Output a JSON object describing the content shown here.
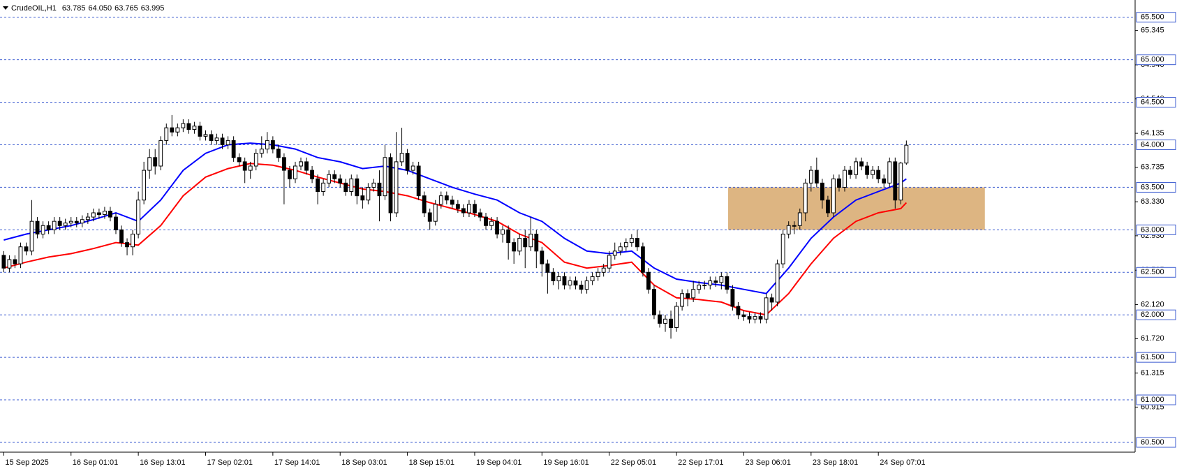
{
  "chart_data": {
    "type": "candlestick",
    "title": "CrudeOIL,H1",
    "quote": [
      "63.785",
      "64.050",
      "63.765",
      "63.995"
    ],
    "xlim": [
      -0.67,
      201.8
    ],
    "ylim": [
      60.385,
      65.703
    ],
    "xticks": [
      {
        "value": 0,
        "label": "15 Sep 2025"
      },
      {
        "value": 12,
        "label": "16 Sep 01:01"
      },
      {
        "value": 24,
        "label": "16 Sep 13:01"
      },
      {
        "value": 36,
        "label": "17 Sep 02:01"
      },
      {
        "value": 48,
        "label": "17 Sep 14:01"
      },
      {
        "value": 60,
        "label": "18 Sep 03:01"
      },
      {
        "value": 72,
        "label": "18 Sep 15:01"
      },
      {
        "value": 84,
        "label": "19 Sep 04:01"
      },
      {
        "value": 96,
        "label": "19 Sep 16:01"
      },
      {
        "value": 108,
        "label": "22 Sep 05:01"
      },
      {
        "value": 120,
        "label": "22 Sep 17:01"
      },
      {
        "value": 132,
        "label": "23 Sep 06:01"
      },
      {
        "value": 144,
        "label": "23 Sep 18:01"
      },
      {
        "value": 156,
        "label": "24 Sep 07:01"
      }
    ],
    "yticks": [
      65.345,
      {
        "value": 64.94,
        "label": "64.940"
      },
      {
        "value": 64.54,
        "label": "64.540"
      },
      64.135,
      63.735,
      {
        "value": 63.33,
        "label": "63.330"
      },
      {
        "value": 62.93,
        "label": "62.930"
      },
      62.525,
      {
        "value": 62.12,
        "label": "62.120"
      },
      {
        "value": 61.72,
        "label": "61.720"
      },
      61.315,
      60.915
    ],
    "levels": [
      {
        "value": 65.5,
        "label": "65.500"
      },
      {
        "value": 65.0,
        "label": "65.000"
      },
      {
        "value": 64.5,
        "label": "64.500"
      },
      {
        "value": 64.0,
        "label": "64.000"
      },
      {
        "value": 63.5,
        "label": "63.500"
      },
      {
        "value": 63.0,
        "label": "63.000"
      },
      {
        "value": 62.5,
        "label": "62.500"
      },
      {
        "value": 62.0,
        "label": "62.000"
      },
      {
        "value": 61.5,
        "label": "61.500"
      },
      {
        "value": 61.0,
        "label": "61.000"
      },
      {
        "value": 60.5,
        "label": "60.500"
      }
    ],
    "level_color": "#3b5bd0",
    "zone": {
      "x": [
        129.2,
        175
      ],
      "y": [
        63.0,
        63.5
      ],
      "color": "#ddb582"
    },
    "up_color": "#ffffff",
    "down_color": "#000000",
    "open": [
      62.7,
      62.55,
      62.65,
      62.6,
      62.8,
      62.75,
      63.1,
      62.95,
      63.05,
      63.0,
      63.1,
      63.05,
      63.08,
      63.1,
      63.08,
      63.12,
      63.15,
      63.2,
      63.18,
      63.22,
      63.15,
      63.0,
      62.85,
      62.8,
      62.95,
      63.35,
      63.7,
      63.85,
      63.75,
      64.05,
      64.2,
      64.15,
      64.2,
      64.25,
      64.18,
      64.22,
      64.1,
      64.12,
      64.05,
      64.08,
      64.0,
      64.05,
      63.85,
      63.8,
      63.7,
      63.75,
      63.9,
      63.95,
      64.05,
      63.95,
      63.85,
      63.7,
      63.6,
      63.75,
      63.8,
      63.7,
      63.6,
      63.45,
      63.55,
      63.65,
      63.6,
      63.55,
      63.45,
      63.6,
      63.4,
      63.35,
      63.5,
      63.55,
      63.4,
      63.85,
      63.2,
      63.8,
      63.9,
      63.7,
      63.75,
      63.4,
      63.2,
      63.1,
      63.3,
      63.4,
      63.35,
      63.3,
      63.25,
      63.2,
      63.3,
      63.2,
      63.15,
      63.05,
      63.1,
      62.95,
      63.0,
      62.85,
      62.75,
      62.9,
      62.8,
      62.95,
      62.75,
      62.6,
      62.5,
      62.4,
      62.45,
      62.35,
      62.4,
      62.35,
      62.3,
      62.4,
      62.45,
      62.5,
      62.55,
      62.7,
      62.75,
      62.8,
      62.85,
      62.9,
      62.8,
      62.5,
      62.3,
      62.0,
      61.9,
      61.95,
      61.85,
      62.1,
      62.25,
      62.2,
      62.3,
      62.35,
      62.35,
      62.4,
      62.38,
      62.45,
      62.3,
      62.1,
      62.0,
      61.98,
      61.95,
      61.98,
      61.95,
      62.2,
      62.15,
      62.6,
      62.95,
      63.05,
      63.05,
      63.2,
      63.55,
      63.7,
      63.55,
      63.35,
      63.2,
      63.6,
      63.5,
      63.7,
      63.65,
      63.8,
      63.75,
      63.65,
      63.7,
      63.6,
      63.55,
      63.8,
      63.35,
      63.785
    ],
    "high": [
      62.75,
      62.7,
      62.7,
      62.85,
      62.85,
      63.35,
      63.15,
      63.1,
      63.1,
      63.15,
      63.15,
      63.13,
      63.15,
      63.15,
      63.17,
      63.2,
      63.25,
      63.25,
      63.27,
      63.27,
      63.2,
      63.05,
      62.9,
      63.0,
      63.45,
      63.8,
      63.95,
      63.95,
      64.1,
      64.25,
      64.35,
      64.25,
      64.3,
      64.3,
      64.27,
      64.27,
      64.17,
      64.17,
      64.13,
      64.13,
      64.1,
      64.1,
      63.9,
      63.85,
      63.8,
      63.95,
      64.1,
      64.15,
      64.1,
      64.0,
      63.9,
      63.75,
      63.8,
      63.85,
      63.85,
      63.75,
      63.65,
      63.6,
      63.7,
      63.7,
      63.65,
      63.6,
      63.65,
      63.65,
      63.5,
      63.55,
      63.6,
      63.7,
      64.0,
      63.9,
      64.15,
      64.2,
      63.95,
      63.8,
      63.8,
      63.45,
      63.25,
      63.35,
      63.45,
      63.45,
      63.4,
      63.35,
      63.3,
      63.35,
      63.35,
      63.25,
      63.2,
      63.15,
      63.15,
      63.05,
      63.05,
      62.9,
      62.95,
      63.0,
      63.15,
      63.0,
      62.8,
      62.65,
      62.55,
      62.5,
      62.5,
      62.45,
      62.45,
      62.4,
      62.45,
      62.5,
      62.55,
      62.6,
      62.75,
      62.85,
      62.85,
      62.9,
      62.95,
      63.0,
      62.85,
      62.55,
      62.35,
      62.05,
      62.0,
      62.05,
      62.15,
      62.3,
      62.3,
      62.4,
      62.4,
      62.4,
      62.45,
      62.45,
      62.5,
      62.5,
      62.35,
      62.15,
      62.05,
      62.03,
      62.03,
      62.03,
      62.25,
      62.25,
      62.65,
      63.0,
      63.1,
      63.1,
      63.25,
      63.6,
      63.75,
      63.85,
      63.6,
      63.4,
      63.65,
      63.65,
      63.75,
      63.75,
      63.85,
      63.85,
      63.8,
      63.75,
      63.75,
      63.65,
      63.85,
      63.85,
      63.8,
      64.05
    ],
    "low": [
      62.5,
      62.5,
      62.55,
      62.55,
      62.7,
      62.7,
      62.9,
      62.9,
      62.95,
      62.95,
      63.0,
      63.0,
      63.03,
      63.03,
      63.03,
      63.07,
      63.1,
      63.13,
      63.13,
      63.1,
      62.95,
      62.8,
      62.7,
      62.7,
      62.9,
      63.3,
      63.6,
      63.65,
      63.7,
      64.0,
      64.1,
      64.1,
      64.15,
      64.13,
      64.13,
      64.05,
      64.05,
      64.0,
      64.0,
      63.95,
      63.95,
      63.8,
      63.75,
      63.55,
      63.6,
      63.7,
      63.85,
      63.9,
      63.9,
      63.8,
      63.3,
      63.5,
      63.55,
      63.7,
      63.65,
      63.55,
      63.3,
      63.4,
      63.5,
      63.55,
      63.5,
      63.4,
      63.4,
      63.3,
      63.25,
      63.3,
      63.45,
      63.1,
      63.35,
      63.1,
      63.15,
      63.75,
      63.65,
      63.65,
      63.35,
      63.15,
      63.0,
      63.05,
      63.25,
      63.3,
      63.25,
      63.2,
      63.15,
      63.15,
      63.15,
      63.1,
      63.0,
      63.0,
      62.9,
      62.85,
      62.65,
      62.6,
      62.7,
      62.55,
      62.75,
      62.55,
      62.45,
      62.25,
      62.35,
      62.3,
      62.3,
      62.3,
      62.3,
      62.25,
      62.25,
      62.35,
      62.4,
      62.45,
      62.5,
      62.65,
      62.7,
      62.75,
      62.8,
      62.75,
      62.45,
      62.25,
      61.95,
      61.85,
      61.8,
      61.72,
      61.8,
      62.05,
      62.1,
      62.15,
      62.25,
      62.3,
      62.3,
      62.33,
      62.3,
      62.25,
      62.05,
      61.95,
      61.93,
      61.9,
      61.9,
      61.9,
      61.9,
      62.05,
      62.1,
      62.55,
      62.9,
      62.95,
      63.0,
      63.1,
      63.45,
      63.5,
      63.25,
      63.15,
      63.15,
      63.45,
      63.45,
      63.6,
      63.6,
      63.7,
      63.6,
      63.6,
      63.55,
      63.5,
      63.5,
      63.25,
      63.3,
      63.765
    ],
    "close": [
      62.55,
      62.65,
      62.6,
      62.8,
      62.75,
      63.1,
      62.95,
      63.05,
      63.0,
      63.1,
      63.05,
      63.08,
      63.1,
      63.08,
      63.12,
      63.15,
      63.2,
      63.18,
      63.22,
      63.15,
      63.0,
      62.85,
      62.8,
      62.95,
      63.35,
      63.7,
      63.85,
      63.75,
      64.05,
      64.2,
      64.15,
      64.2,
      64.25,
      64.18,
      64.22,
      64.1,
      64.12,
      64.05,
      64.08,
      64.0,
      64.05,
      63.85,
      63.8,
      63.7,
      63.75,
      63.9,
      63.95,
      64.05,
      63.95,
      63.85,
      63.7,
      63.6,
      63.75,
      63.8,
      63.7,
      63.6,
      63.45,
      63.55,
      63.65,
      63.6,
      63.55,
      63.45,
      63.6,
      63.4,
      63.35,
      63.5,
      63.55,
      63.4,
      63.85,
      63.2,
      63.8,
      63.9,
      63.7,
      63.75,
      63.4,
      63.2,
      63.1,
      63.3,
      63.4,
      63.35,
      63.3,
      63.25,
      63.2,
      63.3,
      63.2,
      63.15,
      63.05,
      63.1,
      62.95,
      63.0,
      62.85,
      62.75,
      62.9,
      62.8,
      62.95,
      62.75,
      62.6,
      62.5,
      62.4,
      62.45,
      62.35,
      62.4,
      62.35,
      62.3,
      62.4,
      62.45,
      62.5,
      62.55,
      62.7,
      62.75,
      62.8,
      62.85,
      62.9,
      62.8,
      62.5,
      62.3,
      62.0,
      61.9,
      61.95,
      61.85,
      62.1,
      62.25,
      62.2,
      62.3,
      62.35,
      62.35,
      62.4,
      62.38,
      62.45,
      62.3,
      62.1,
      62.0,
      61.98,
      61.95,
      61.98,
      61.95,
      62.2,
      62.15,
      62.6,
      62.95,
      63.05,
      63.05,
      63.2,
      63.55,
      63.7,
      63.55,
      63.35,
      63.2,
      63.6,
      63.5,
      63.7,
      63.65,
      63.8,
      63.75,
      63.65,
      63.7,
      63.6,
      63.55,
      63.8,
      63.35,
      63.785,
      63.995
    ],
    "series": [
      {
        "color": "#0000ff",
        "x": [
          0,
          4,
          8,
          12,
          16,
          20,
          24,
          28,
          32,
          36,
          40,
          44,
          48,
          52,
          56,
          60,
          64,
          68,
          72,
          76,
          80,
          84,
          88,
          92,
          96,
          100,
          104,
          108,
          112,
          116,
          120,
          124,
          128,
          132,
          136,
          140,
          144,
          148,
          152,
          156,
          160,
          161
        ],
        "values": [
          62.88,
          62.95,
          63.0,
          63.05,
          63.12,
          63.2,
          63.1,
          63.35,
          63.7,
          63.9,
          64.0,
          64.02,
          64.0,
          63.95,
          63.85,
          63.8,
          63.72,
          63.75,
          63.7,
          63.6,
          63.5,
          63.42,
          63.35,
          63.2,
          63.1,
          62.9,
          62.75,
          62.72,
          62.75,
          62.55,
          62.42,
          62.38,
          62.35,
          62.3,
          62.25,
          62.55,
          62.9,
          63.15,
          63.35,
          63.45,
          63.55,
          63.6
        ]
      },
      {
        "color": "#ff0000",
        "x": [
          0,
          4,
          8,
          12,
          16,
          20,
          24,
          28,
          32,
          36,
          40,
          44,
          48,
          52,
          56,
          60,
          64,
          68,
          72,
          76,
          80,
          84,
          88,
          92,
          96,
          100,
          104,
          108,
          112,
          116,
          120,
          124,
          128,
          132,
          136,
          140,
          144,
          148,
          152,
          156,
          160,
          161
        ],
        "values": [
          62.55,
          62.62,
          62.68,
          62.72,
          62.78,
          62.85,
          62.82,
          63.05,
          63.4,
          63.62,
          63.72,
          63.78,
          63.76,
          63.7,
          63.62,
          63.55,
          63.48,
          63.45,
          63.4,
          63.32,
          63.25,
          63.18,
          63.1,
          62.95,
          62.85,
          62.62,
          62.55,
          62.58,
          62.62,
          62.35,
          62.2,
          62.18,
          62.15,
          62.05,
          62.0,
          62.25,
          62.6,
          62.9,
          63.1,
          63.2,
          63.25,
          63.32
        ]
      }
    ]
  }
}
